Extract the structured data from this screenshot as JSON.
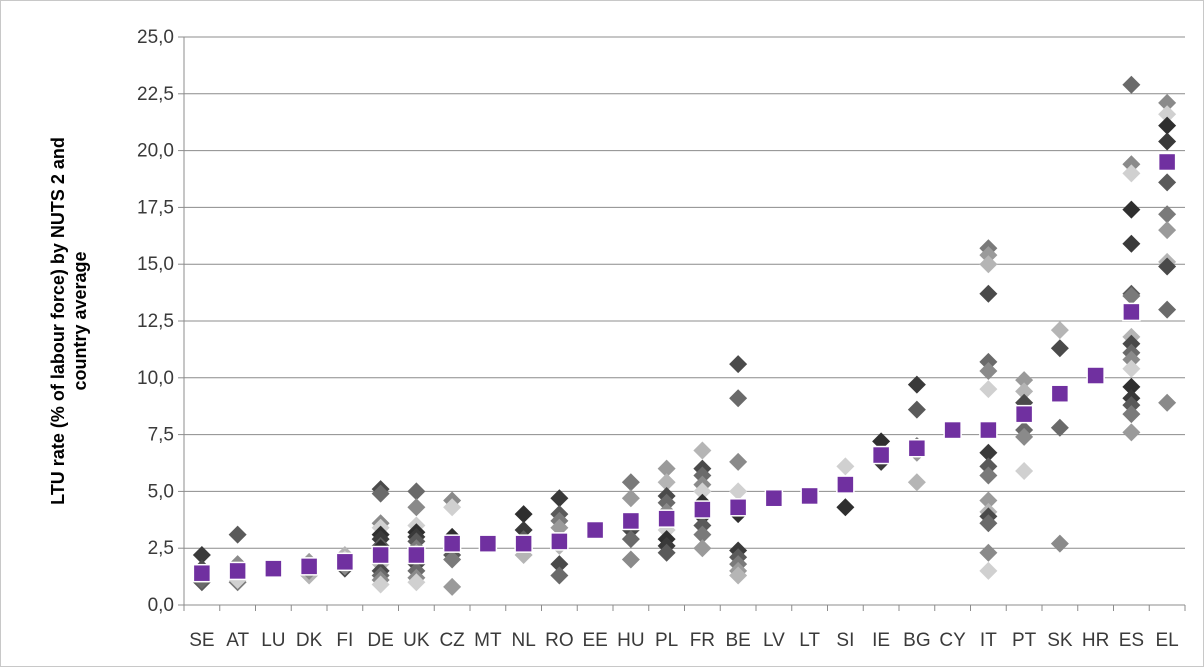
{
  "chart_data": {
    "type": "scatter",
    "title": "",
    "xlabel": "",
    "ylabel_lines": [
      "LTU rate (% of labour force) by NUTS 2 and",
      "country average"
    ],
    "ylim": [
      0,
      25
    ],
    "y_tick_labels": [
      "0,0",
      "2,5",
      "5,0",
      "7,5",
      "10,0",
      "12,5",
      "15,0",
      "17,5",
      "20,0",
      "22,5",
      "25,0"
    ],
    "y_tick_values": [
      0,
      2.5,
      5,
      7.5,
      10,
      12.5,
      15,
      17.5,
      20,
      22.5,
      25
    ],
    "grid": "horizontal",
    "legend": "none",
    "categories": [
      "SE",
      "AT",
      "LU",
      "DK",
      "FI",
      "DE",
      "UK",
      "CZ",
      "MT",
      "NL",
      "RO",
      "EE",
      "HU",
      "PL",
      "FR",
      "BE",
      "LV",
      "LT",
      "SI",
      "IE",
      "BG",
      "CY",
      "IT",
      "PT",
      "SK",
      "HR",
      "ES",
      "EL"
    ],
    "series": [
      {
        "role": "country average",
        "marker": "square",
        "color": "#7030a0",
        "values": [
          1.4,
          1.5,
          1.6,
          1.7,
          1.9,
          2.2,
          2.2,
          2.7,
          2.7,
          2.7,
          2.8,
          3.3,
          3.7,
          3.8,
          4.2,
          4.3,
          4.7,
          4.8,
          5.3,
          6.6,
          6.9,
          7.7,
          7.7,
          8.4,
          9.3,
          10.1,
          12.9,
          19.5
        ]
      },
      {
        "role": "NUTS 2 regions",
        "marker": "diamond",
        "points": [
          {
            "c": "SE",
            "v": [
              2.2,
              1.0,
              1.2,
              1.5,
              1.3,
              1.6,
              1.1,
              1.4
            ]
          },
          {
            "c": "AT",
            "v": [
              3.1,
              1.0,
              1.2,
              1.5,
              1.3,
              1.6,
              1.8,
              1.1
            ]
          },
          {
            "c": "DK",
            "v": [
              1.9,
              1.3,
              1.6,
              1.7,
              1.5
            ]
          },
          {
            "c": "FI",
            "v": [
              2.2,
              1.6,
              1.8,
              1.7,
              2.0
            ]
          },
          {
            "c": "DE",
            "v": [
              5.1,
              4.9,
              3.6,
              3.4,
              3.1,
              2.9,
              2.6,
              2.3,
              2.0,
              1.8,
              1.5,
              1.3,
              1.1,
              0.9,
              2.5
            ]
          },
          {
            "c": "UK",
            "v": [
              5.0,
              4.3,
              3.5,
              3.2,
              3.0,
              2.8,
              2.5,
              2.3,
              2.0,
              1.8,
              1.5,
              1.2,
              1.0
            ]
          },
          {
            "c": "CZ",
            "v": [
              4.6,
              4.3,
              3.0,
              2.6,
              2.2,
              2.0,
              0.8
            ]
          },
          {
            "c": "NL",
            "v": [
              4.0,
              3.3,
              2.9,
              2.6,
              2.4,
              2.2
            ]
          },
          {
            "c": "RO",
            "v": [
              4.7,
              4.0,
              3.7,
              3.4,
              2.6,
              1.8,
              1.3
            ]
          },
          {
            "c": "HU",
            "v": [
              5.4,
              4.7,
              3.6,
              3.3,
              2.9,
              2.0
            ]
          },
          {
            "c": "PL",
            "v": [
              6.0,
              5.4,
              4.8,
              4.5,
              4.1,
              3.3,
              2.9,
              2.6,
              2.3
            ]
          },
          {
            "c": "FR",
            "v": [
              6.8,
              6.0,
              5.7,
              5.3,
              5.0,
              4.5,
              3.9,
              3.5,
              3.1,
              2.5
            ]
          },
          {
            "c": "BE",
            "v": [
              10.6,
              9.1,
              6.3,
              5.0,
              4.0,
              2.4,
              2.1,
              1.8,
              1.5,
              1.3
            ]
          },
          {
            "c": "SI",
            "v": [
              6.1,
              4.3
            ]
          },
          {
            "c": "IE",
            "v": [
              7.2,
              6.3
            ]
          },
          {
            "c": "BG",
            "v": [
              9.7,
              8.6,
              7.0,
              6.7,
              5.4
            ]
          },
          {
            "c": "IT",
            "v": [
              15.7,
              15.4,
              15.0,
              13.7,
              10.7,
              10.3,
              9.5,
              7.7,
              6.7,
              6.1,
              5.7,
              4.6,
              4.1,
              3.9,
              3.6,
              2.3,
              1.5
            ]
          },
          {
            "c": "PT",
            "v": [
              9.9,
              9.4,
              8.9,
              7.7,
              7.4,
              5.9
            ]
          },
          {
            "c": "SK",
            "v": [
              12.1,
              11.3,
              7.8,
              2.7
            ]
          },
          {
            "c": "ES",
            "v": [
              22.9,
              19.4,
              19.0,
              17.4,
              15.9,
              13.7,
              13.6,
              12.9,
              11.8,
              11.5,
              11.1,
              10.8,
              10.4,
              9.6,
              9.1,
              8.8,
              8.4,
              7.6
            ]
          },
          {
            "c": "EL",
            "v": [
              22.1,
              21.6,
              21.1,
              20.4,
              18.6,
              17.2,
              16.5,
              15.1,
              14.9,
              13.0,
              8.9
            ]
          }
        ]
      }
    ]
  }
}
